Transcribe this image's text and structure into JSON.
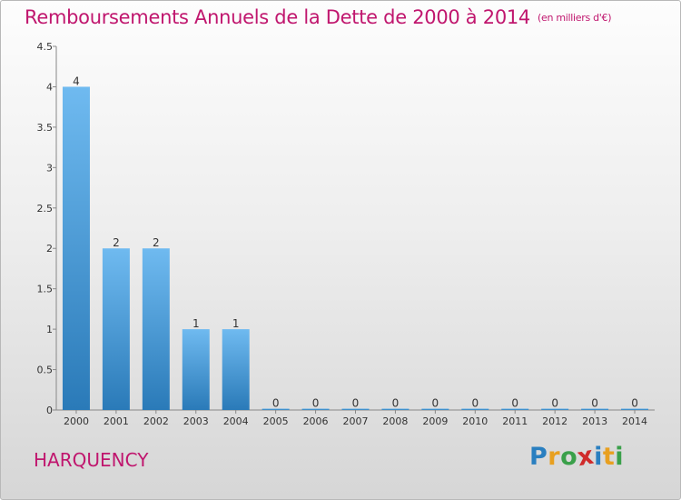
{
  "title": "Remboursements Annuels de la Dette de 2000 à 2014",
  "subtitle": "(en milliers d'€)",
  "place": "HARQUENCY",
  "logo": {
    "text": "Proxiti",
    "letters": [
      "P",
      "r",
      "o",
      "x",
      "i",
      "t",
      "i"
    ],
    "colors": [
      "#2a7fc0",
      "#e8a020",
      "#3aa04a",
      "#d02a2a",
      "#2a7fc0",
      "#e8a020",
      "#3aa04a"
    ]
  },
  "colors": {
    "title": "#c0166e",
    "bar_top": "#6fbaf0",
    "bar_bottom": "#2a7ab8"
  },
  "chart_data": {
    "type": "bar",
    "title": "Remboursements Annuels de la Dette de 2000 à 2014",
    "subtitle": "(en milliers d'€)",
    "xlabel": "",
    "ylabel": "",
    "categories": [
      "2000",
      "2001",
      "2002",
      "2003",
      "2004",
      "2005",
      "2006",
      "2007",
      "2008",
      "2009",
      "2010",
      "2011",
      "2012",
      "2013",
      "2014"
    ],
    "values": [
      4,
      2,
      2,
      1,
      1,
      0,
      0,
      0,
      0,
      0,
      0,
      0,
      0,
      0,
      0
    ],
    "value_labels": [
      "4",
      "2",
      "2",
      "1",
      "1",
      "0",
      "0",
      "0",
      "0",
      "0",
      "0",
      "0",
      "0",
      "0",
      "0"
    ],
    "ylim": [
      0,
      4.5
    ],
    "yticks": [
      0,
      0.5,
      1,
      1.5,
      2,
      2.5,
      3,
      3.5,
      4,
      4.5
    ],
    "ytick_labels": [
      "0",
      "0.5",
      "1",
      "1.5",
      "2",
      "2.5",
      "3",
      "3.5",
      "4",
      "4.5"
    ],
    "grid": false,
    "legend": "none"
  }
}
